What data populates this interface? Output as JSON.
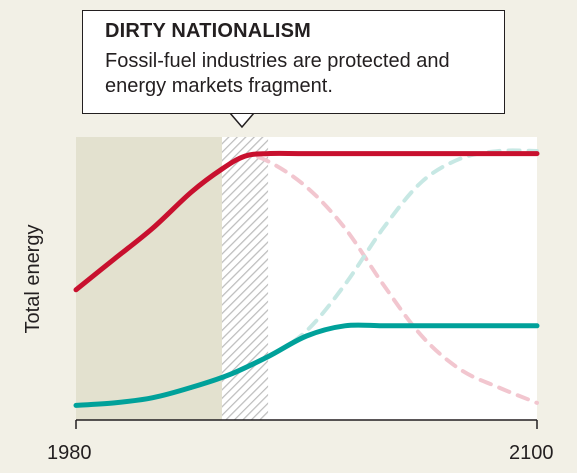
{
  "callout": {
    "title": "DIRTY NATIONALISM",
    "body": "Fossil-fuel industries are protected and energy markets fragment."
  },
  "chart_data": {
    "type": "line",
    "title": "DIRTY NATIONALISM",
    "subtitle": "Fossil-fuel industries are protected and energy markets fragment.",
    "xlabel": "",
    "ylabel": "Total energy",
    "x_ticks": [
      "1980",
      "2100"
    ],
    "xlim": [
      1980,
      2100
    ],
    "ylim": [
      0,
      100
    ],
    "grid": false,
    "legend": "none",
    "shaded_regions": [
      {
        "name": "historical",
        "x_range": [
          1980,
          2018
        ],
        "style": "solid",
        "color": "#e3e1cf"
      },
      {
        "name": "transition",
        "x_range": [
          2018,
          2030
        ],
        "style": "hatched",
        "color": "#bfbfbf"
      }
    ],
    "series": [
      {
        "color": "#c8102e",
        "style": "solid",
        "x": [
          1980,
          1990,
          2000,
          2010,
          2018,
          2024,
          2030,
          2040,
          2060,
          2080,
          2100
        ],
        "y": [
          46,
          58,
          70,
          84,
          93,
          98,
          99,
          99,
          99,
          99,
          99
        ]
      },
      {
        "color": "#00a19a",
        "style": "solid",
        "x": [
          1980,
          1990,
          2000,
          2010,
          2020,
          2030,
          2040,
          2050,
          2060,
          2070,
          2080,
          2100
        ],
        "y": [
          1,
          2,
          4,
          8,
          13,
          20,
          28,
          32,
          32,
          32,
          32,
          32
        ]
      },
      {
        "color": "#f2c6cf",
        "style": "dashed",
        "x": [
          2018,
          2024,
          2030,
          2040,
          2050,
          2060,
          2070,
          2080,
          2090,
          2100
        ],
        "y": [
          93,
          98,
          96,
          86,
          70,
          48,
          28,
          15,
          8,
          2
        ]
      },
      {
        "color": "#c7e8e4",
        "style": "dashed",
        "x": [
          2018,
          2030,
          2040,
          2050,
          2060,
          2070,
          2080,
          2090,
          2100
        ],
        "y": [
          12,
          20,
          30,
          48,
          70,
          88,
          97,
          100,
          100
        ]
      }
    ]
  }
}
